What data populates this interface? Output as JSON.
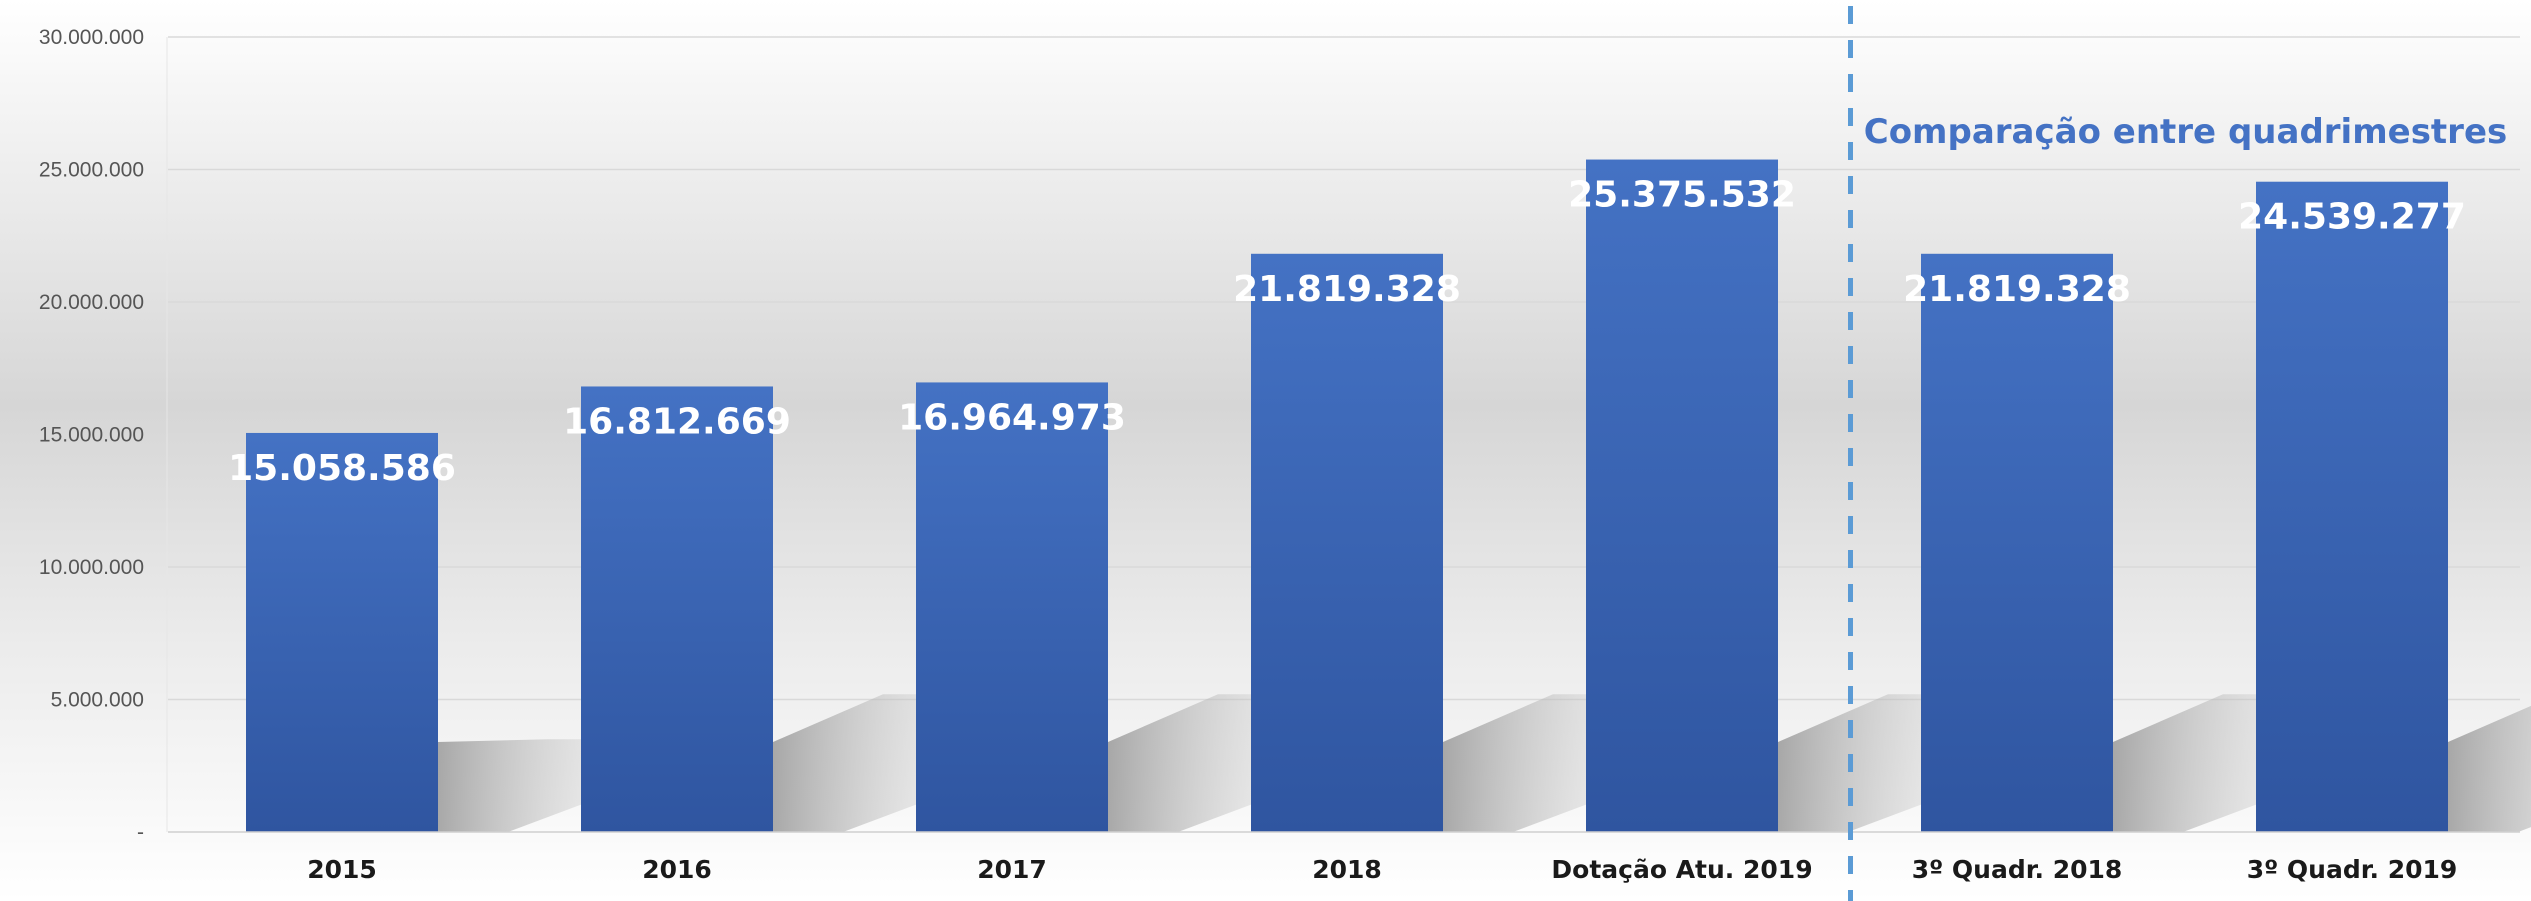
{
  "chart_data": {
    "type": "bar",
    "categories": [
      "2015",
      "2016",
      "2017",
      "2018",
      "Dotação Atu. 2019",
      "3º Quadr. 2018",
      "3º Quadr. 2019"
    ],
    "values": [
      15058586,
      16812669,
      16964973,
      21819328,
      25375532,
      21819328,
      24539277
    ],
    "value_labels": [
      "15.058.586",
      "16.812.669",
      "16.964.973",
      "21.819.328",
      "25.375.532",
      "21.819.328",
      "24.539.277"
    ],
    "y_ticks": [
      0,
      5000000,
      10000000,
      15000000,
      20000000,
      25000000,
      30000000
    ],
    "y_tick_labels": [
      "-",
      "5.000.000",
      "10.000.000",
      "15.000.000",
      "20.000.000",
      "25.000.000",
      "30.000.000"
    ],
    "ylim": [
      0,
      30000000
    ],
    "grid": true,
    "annotation": "Comparação entre quadrimestres",
    "divider_after_category": "Dotação Atu. 2019",
    "colors": {
      "bar_top": "#4472c4",
      "bar_bottom": "#2f55a0",
      "value_label": "#ffffff",
      "annotation": "#4472c4",
      "divider": "#5b9bd5",
      "gridline": "#d9d9d9"
    }
  }
}
